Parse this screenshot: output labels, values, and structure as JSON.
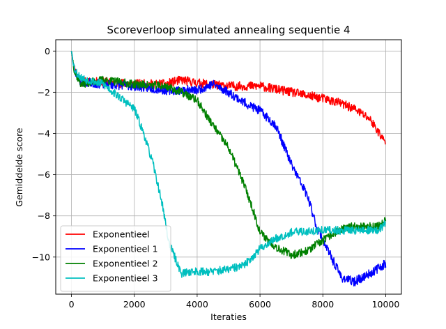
{
  "chart_data": {
    "type": "line",
    "title": "Scoreverloop simulated annealing sequentie 4",
    "xlabel": "Iteraties",
    "ylabel": "Gemiddelde score",
    "xlim": [
      -500,
      10500
    ],
    "ylim": [
      -11.8,
      0.55
    ],
    "xticks": [
      0,
      2000,
      4000,
      6000,
      8000,
      10000
    ],
    "yticks": [
      0,
      -2,
      -4,
      -6,
      -8,
      -10
    ],
    "grid": true,
    "legend_position": "lower-left",
    "series": [
      {
        "name": "Exponentieel",
        "color": "#ff0000",
        "noise": 0.22,
        "seed": 11,
        "points": [
          [
            0,
            0
          ],
          [
            100,
            -0.9
          ],
          [
            300,
            -1.5
          ],
          [
            1000,
            -1.5
          ],
          [
            2000,
            -1.6
          ],
          [
            3000,
            -1.6
          ],
          [
            3500,
            -1.4
          ],
          [
            4000,
            -1.55
          ],
          [
            5000,
            -1.7
          ],
          [
            6000,
            -1.7
          ],
          [
            7000,
            -2.0
          ],
          [
            8000,
            -2.3
          ],
          [
            8500,
            -2.5
          ],
          [
            9000,
            -2.8
          ],
          [
            9500,
            -3.3
          ],
          [
            9800,
            -4.0
          ],
          [
            10000,
            -4.5
          ]
        ]
      },
      {
        "name": "Exponentieel 1",
        "color": "#0000ff",
        "noise": 0.22,
        "seed": 23,
        "points": [
          [
            0,
            0
          ],
          [
            100,
            -1.0
          ],
          [
            300,
            -1.5
          ],
          [
            1000,
            -1.6
          ],
          [
            2000,
            -1.7
          ],
          [
            3000,
            -1.9
          ],
          [
            4000,
            -1.9
          ],
          [
            4500,
            -1.6
          ],
          [
            5000,
            -2.0
          ],
          [
            5500,
            -2.5
          ],
          [
            6000,
            -2.9
          ],
          [
            6500,
            -3.6
          ],
          [
            7000,
            -5.5
          ],
          [
            7500,
            -7.0
          ],
          [
            7800,
            -8.5
          ],
          [
            8200,
            -9.8
          ],
          [
            8600,
            -11.0
          ],
          [
            9000,
            -11.2
          ],
          [
            9500,
            -10.8
          ],
          [
            10000,
            -10.3
          ]
        ]
      },
      {
        "name": "Exponentieel 2",
        "color": "#008000",
        "noise": 0.2,
        "seed": 37,
        "points": [
          [
            0,
            0
          ],
          [
            100,
            -1.0
          ],
          [
            300,
            -1.6
          ],
          [
            1000,
            -1.4
          ],
          [
            2000,
            -1.6
          ],
          [
            3000,
            -1.7
          ],
          [
            3500,
            -2.0
          ],
          [
            4000,
            -2.4
          ],
          [
            4500,
            -3.6
          ],
          [
            5000,
            -4.7
          ],
          [
            5500,
            -6.5
          ],
          [
            5800,
            -7.8
          ],
          [
            6000,
            -8.8
          ],
          [
            6500,
            -9.5
          ],
          [
            7000,
            -9.9
          ],
          [
            7500,
            -9.7
          ],
          [
            8000,
            -9.2
          ],
          [
            8500,
            -8.7
          ],
          [
            9000,
            -8.5
          ],
          [
            9800,
            -8.5
          ],
          [
            10000,
            -8.2
          ]
        ]
      },
      {
        "name": "Exponentieel 3",
        "color": "#00bfbf",
        "noise": 0.2,
        "seed": 53,
        "points": [
          [
            0,
            0
          ],
          [
            100,
            -0.9
          ],
          [
            300,
            -1.3
          ],
          [
            1000,
            -1.6
          ],
          [
            1500,
            -2.2
          ],
          [
            2000,
            -2.8
          ],
          [
            2300,
            -4.0
          ],
          [
            2600,
            -5.5
          ],
          [
            2900,
            -7.5
          ],
          [
            3100,
            -9.3
          ],
          [
            3500,
            -10.8
          ],
          [
            3800,
            -10.7
          ],
          [
            4500,
            -10.7
          ],
          [
            5000,
            -10.6
          ],
          [
            5500,
            -10.4
          ],
          [
            6000,
            -9.6
          ],
          [
            6500,
            -9.1
          ],
          [
            7000,
            -8.8
          ],
          [
            8000,
            -8.7
          ],
          [
            9800,
            -8.7
          ],
          [
            10000,
            -8.3
          ]
        ]
      }
    ]
  }
}
